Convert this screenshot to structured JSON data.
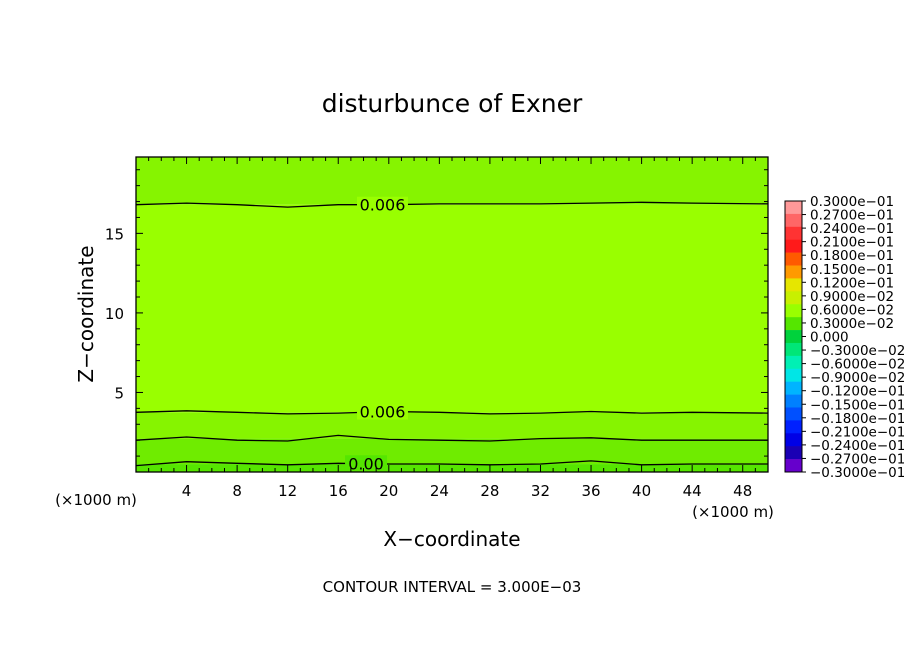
{
  "chart_data": {
    "type": "heatmap",
    "title": "disturbunce of Exner",
    "xlabel": "X−coordinate",
    "ylabel": "Z−coordinate",
    "x_unit_left": "(×1000 m)",
    "x_unit_right": "(×1000 m)",
    "xlim": [
      0,
      50
    ],
    "ylim": [
      0,
      19.8
    ],
    "x_ticks": [
      4,
      8,
      12,
      16,
      20,
      24,
      28,
      32,
      36,
      40,
      44,
      48
    ],
    "x_tick_labels": [
      "4",
      "8",
      "12",
      "16",
      "20",
      "24",
      "28",
      "32",
      "36",
      "40",
      "44",
      "48"
    ],
    "y_ticks": [
      5,
      10,
      15
    ],
    "y_tick_labels": [
      "5",
      "10",
      "15"
    ],
    "footer": "CONTOUR INTERVAL = 3.000E−03",
    "colorbar": {
      "levels": [
        0.03,
        0.027,
        0.024,
        0.021,
        0.018,
        0.015,
        0.012,
        0.009,
        0.006,
        0.003,
        0.0,
        -0.003,
        -0.006,
        -0.009,
        -0.012,
        -0.015,
        -0.018,
        -0.021,
        -0.024,
        -0.027,
        -0.03
      ],
      "labels": [
        "0.3000e−01",
        "0.2700e−01",
        "0.2400e−01",
        "0.2100e−01",
        "0.1800e−01",
        "0.1500e−01",
        "0.1200e−01",
        "0.9000e−02",
        "0.6000e−02",
        "0.3000e−02",
        "0.000",
        "−0.3000e−02",
        "−0.6000e−02",
        "−0.9000e−02",
        "−0.1200e−01",
        "−0.1500e−01",
        "−0.1800e−01",
        "−0.2100e−01",
        "−0.2400e−01",
        "−0.2700e−01",
        "−0.3000e−01"
      ],
      "colors": [
        "#ff9999",
        "#ff6666",
        "#ff3333",
        "#ff1a1a",
        "#ff5a00",
        "#ff9a00",
        "#e6e600",
        "#c8f000",
        "#99ff00",
        "#55e600",
        "#00d23c",
        "#00e678",
        "#00f0b4",
        "#00e6e6",
        "#00b4ff",
        "#0080ff",
        "#0050ff",
        "#0020ff",
        "#0000e6",
        "#1a00b4",
        "#6600cc"
      ]
    },
    "contours": [
      {
        "label": "0.006",
        "z": [
          16.8,
          16.9,
          16.8,
          16.65,
          16.8,
          16.8,
          16.85,
          16.85,
          16.85,
          16.9,
          16.95,
          16.9,
          16.85
        ]
      },
      {
        "label": "0.006",
        "z": [
          3.75,
          3.85,
          3.75,
          3.65,
          3.7,
          3.8,
          3.75,
          3.65,
          3.7,
          3.8,
          3.7,
          3.75,
          3.7
        ]
      },
      {
        "label": "",
        "z": [
          2.0,
          2.2,
          2.0,
          1.95,
          2.3,
          2.05,
          2.0,
          1.95,
          2.1,
          2.15,
          2.0,
          2.0,
          2.0
        ]
      },
      {
        "label": "0.00",
        "z": [
          0.4,
          0.65,
          0.55,
          0.45,
          0.55,
          0.5,
          0.5,
          0.45,
          0.5,
          0.7,
          0.45,
          0.5,
          0.5
        ]
      }
    ],
    "contour_x": [
      0,
      4,
      8,
      12,
      16,
      20,
      24,
      28,
      32,
      36,
      40,
      44,
      50
    ],
    "fill_bands": [
      {
        "z_bottom": 0,
        "z_top": 0.5,
        "color": "#55e600"
      },
      {
        "z_bottom": 0.5,
        "z_top": 2.1,
        "color": "#6fec00"
      },
      {
        "z_bottom": 2.1,
        "z_top": 3.75,
        "color": "#86f400"
      },
      {
        "z_bottom": 3.75,
        "z_top": 16.8,
        "color": "#99ff00"
      },
      {
        "z_bottom": 16.8,
        "z_top": 19.8,
        "color": "#86f400"
      }
    ],
    "grid": false,
    "legend": "right"
  }
}
